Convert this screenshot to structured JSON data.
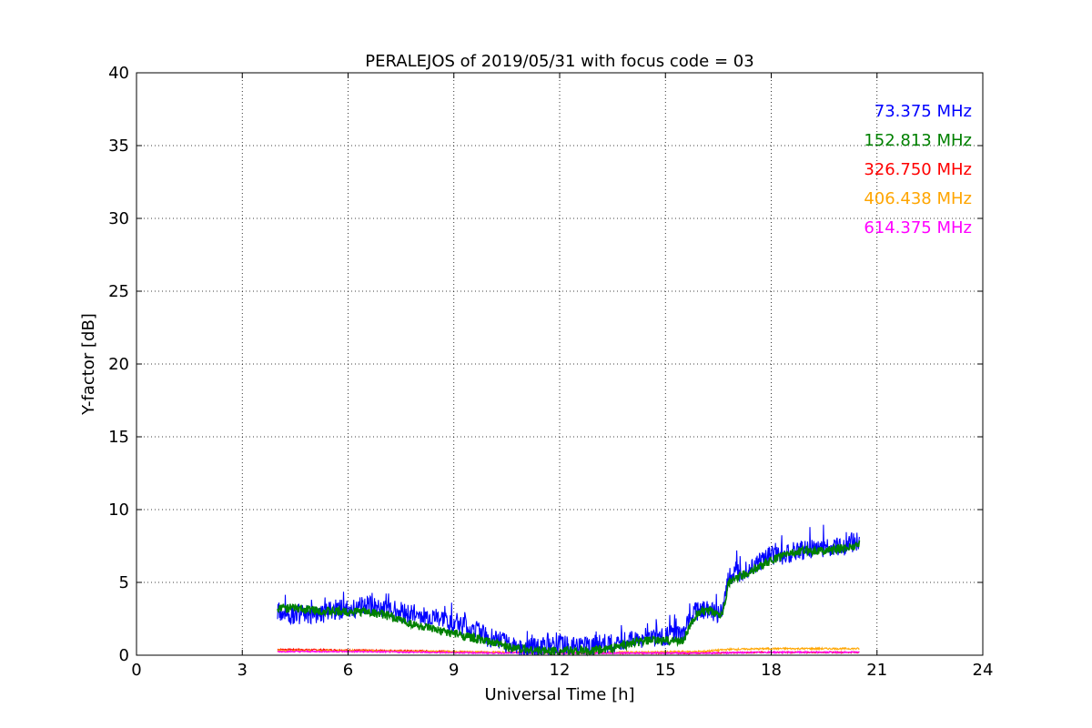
{
  "chart_data": {
    "type": "line",
    "title": "PERALEJOS of 2019/05/31 with focus code = 03",
    "xlabel": "Universal Time [h]",
    "ylabel": "Y-factor [dB]",
    "xlim": [
      0,
      24
    ],
    "ylim": [
      0,
      40
    ],
    "xticks": [
      0,
      3,
      6,
      9,
      12,
      15,
      18,
      21,
      24
    ],
    "yticks": [
      0,
      5,
      10,
      15,
      20,
      25,
      30,
      35,
      40
    ],
    "grid": true,
    "legend_position": "top-right",
    "series": [
      {
        "name": "73.375 MHz",
        "color": "#0000ff",
        "noise": 0.7,
        "x": [
          4.0,
          4.5,
          5.0,
          5.5,
          6.0,
          6.5,
          7.0,
          7.5,
          8.0,
          8.5,
          9.0,
          9.5,
          10.0,
          10.5,
          11.0,
          11.5,
          12.0,
          12.5,
          13.0,
          13.5,
          14.0,
          14.5,
          15.0,
          15.5,
          15.8,
          16.0,
          16.3,
          16.6,
          16.8,
          17.2,
          17.6,
          18.0,
          18.5,
          19.0,
          19.5,
          20.0,
          20.5
        ],
        "y": [
          3.0,
          2.8,
          2.8,
          3.0,
          3.2,
          3.4,
          3.3,
          3.0,
          2.7,
          2.5,
          2.2,
          1.8,
          1.2,
          0.8,
          0.5,
          0.6,
          0.7,
          0.6,
          0.7,
          0.8,
          1.0,
          1.2,
          1.3,
          1.5,
          2.8,
          3.2,
          3.0,
          2.9,
          5.3,
          5.8,
          6.3,
          6.8,
          7.0,
          7.3,
          7.4,
          7.5,
          7.8
        ]
      },
      {
        "name": "152.813 MHz",
        "color": "#008000",
        "noise": 0.3,
        "x": [
          4.0,
          4.5,
          5.0,
          5.5,
          6.0,
          6.5,
          7.0,
          7.5,
          8.0,
          8.5,
          9.0,
          9.5,
          10.0,
          10.5,
          11.0,
          11.5,
          12.0,
          12.5,
          13.0,
          13.5,
          14.0,
          14.5,
          15.0,
          15.5,
          15.8,
          16.0,
          16.3,
          16.6,
          16.8,
          17.2,
          17.6,
          18.0,
          18.5,
          19.0,
          19.5,
          20.0,
          20.5
        ],
        "y": [
          3.3,
          3.2,
          3.1,
          3.0,
          3.0,
          3.0,
          2.8,
          2.4,
          2.0,
          1.7,
          1.5,
          1.2,
          0.9,
          0.6,
          0.4,
          0.3,
          0.3,
          0.3,
          0.3,
          0.5,
          0.8,
          1.0,
          1.0,
          1.0,
          2.5,
          3.0,
          3.0,
          2.8,
          5.0,
          5.5,
          6.0,
          6.5,
          7.0,
          7.2,
          7.2,
          7.3,
          7.6
        ]
      },
      {
        "name": "326.750 MHz",
        "color": "#ff0000",
        "noise": 0.05,
        "x": [
          4.0,
          6.0,
          8.0,
          10.0,
          12.0,
          14.0,
          16.0,
          18.0,
          20.5
        ],
        "y": [
          0.4,
          0.35,
          0.3,
          0.2,
          0.15,
          0.15,
          0.15,
          0.2,
          0.2
        ]
      },
      {
        "name": "406.438 MHz",
        "color": "#ffa500",
        "noise": 0.06,
        "x": [
          4.0,
          6.0,
          8.0,
          10.0,
          12.0,
          14.0,
          16.0,
          16.8,
          18.0,
          20.5
        ],
        "y": [
          0.3,
          0.3,
          0.25,
          0.2,
          0.2,
          0.2,
          0.25,
          0.4,
          0.45,
          0.45
        ]
      },
      {
        "name": "614.375 MHz",
        "color": "#ff00ff",
        "noise": 0.05,
        "x": [
          4.0,
          6.0,
          8.0,
          10.0,
          12.0,
          14.0,
          16.0,
          18.0,
          20.5
        ],
        "y": [
          0.25,
          0.25,
          0.2,
          0.15,
          0.15,
          0.15,
          0.15,
          0.2,
          0.2
        ]
      }
    ]
  }
}
